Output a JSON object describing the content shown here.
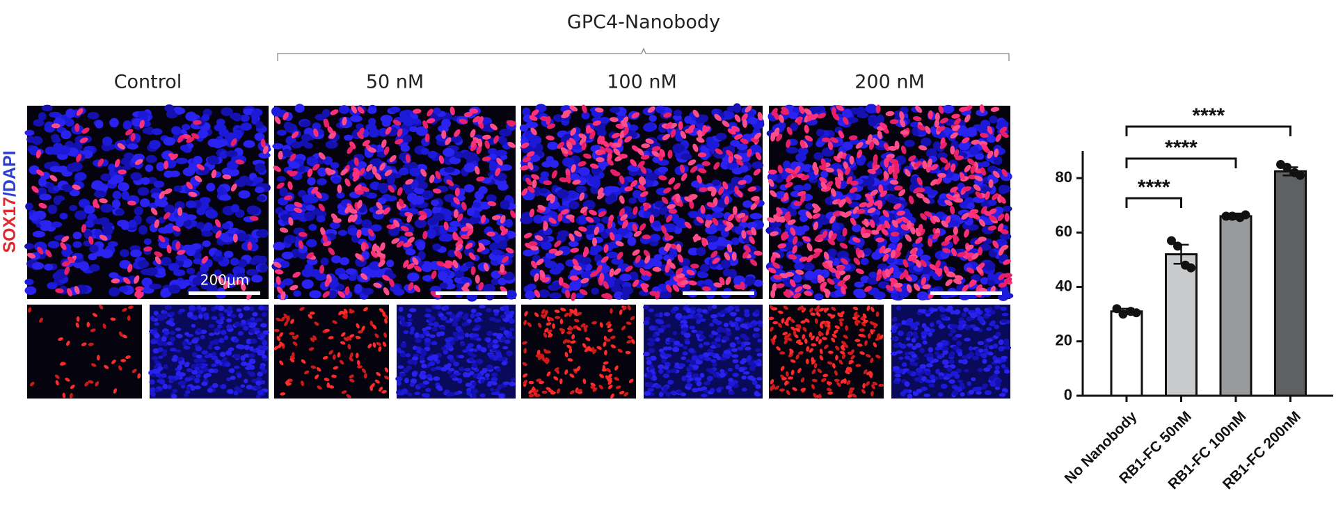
{
  "header": {
    "title": "GPC4-Nanobody"
  },
  "conditions": [
    "Control",
    "50 nM",
    "100 nM",
    "200 nM"
  ],
  "stain_label": {
    "red": "SOX17",
    "blue": "/DAPI"
  },
  "scale_bar": "200µm",
  "chart_data": {
    "type": "bar",
    "categories": [
      "No Nanobody",
      "RB1-FC 50nM",
      "RB1-FC 100nM",
      "RB1-FC 200nM"
    ],
    "values": [
      31,
      52,
      66,
      82.5
    ],
    "errors": [
      1,
      3.5,
      1,
      1.5
    ],
    "points": [
      [
        32,
        30,
        31,
        30.5
      ],
      [
        57,
        55,
        48,
        47
      ],
      [
        66,
        66,
        65.5,
        66.5
      ],
      [
        85,
        84,
        82,
        81
      ]
    ],
    "colors": [
      "#ffffff",
      "#c9cacc",
      "#999a9c",
      "#5f6062"
    ],
    "significance": [
      "****",
      "****",
      "****"
    ],
    "ylim": [
      0,
      90
    ],
    "yticks": [
      0,
      20,
      40,
      60,
      80
    ]
  }
}
